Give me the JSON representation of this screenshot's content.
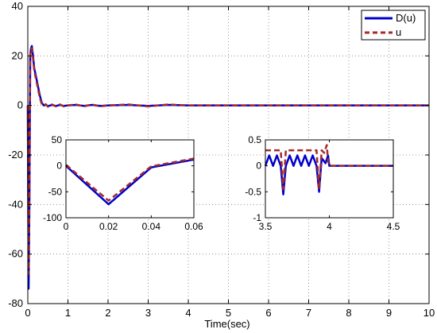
{
  "chart_data": [
    {
      "type": "line",
      "xlabel": "Time(sec)",
      "ylabel": "",
      "xlim": [
        0,
        10
      ],
      "ylim": [
        -80,
        40
      ],
      "xticks": [
        "0",
        "1",
        "2",
        "3",
        "4",
        "5",
        "6",
        "7",
        "8",
        "9",
        "10"
      ],
      "yticks": [
        "40",
        "20",
        "0",
        "-20",
        "-40",
        "-60",
        "-80"
      ],
      "grid": true,
      "legend": {
        "placement": "top-right",
        "entries": [
          "D(u)",
          "u"
        ]
      },
      "series": [
        {
          "name": "D(u)",
          "color": "#0000cc",
          "style": "solid",
          "x": [
            0,
            0.02,
            0.04,
            0.06,
            0.08,
            0.1,
            0.13,
            0.16,
            0.2,
            0.25,
            0.3,
            0.35,
            0.4,
            0.45,
            0.5,
            0.6,
            0.7,
            0.8,
            0.9,
            1.0,
            1.2,
            1.4,
            1.6,
            1.8,
            2.0,
            2.5,
            3.0,
            3.5,
            4.0,
            5,
            6,
            7,
            8,
            9,
            10
          ],
          "y": [
            0,
            -74,
            -40,
            20,
            23,
            24,
            20,
            15,
            12,
            8,
            4,
            1,
            0,
            0.3,
            -0.3,
            0.2,
            -0.2,
            0.2,
            -0.2,
            0,
            0.2,
            -0.2,
            0.2,
            -0.2,
            0,
            0.2,
            -0.2,
            0.2,
            0,
            0,
            0,
            0,
            0,
            0,
            0
          ]
        },
        {
          "name": "u",
          "color": "#a52a2a",
          "style": "dashed",
          "x": [
            0,
            0.02,
            0.04,
            0.06,
            0.08,
            0.1,
            0.13,
            0.16,
            0.2,
            0.25,
            0.3,
            0.35,
            0.4,
            0.45,
            0.5,
            0.6,
            0.7,
            0.8,
            0.9,
            1.0,
            1.2,
            1.4,
            1.6,
            1.8,
            2.0,
            2.5,
            3.0,
            3.5,
            4.0,
            5,
            6,
            7,
            8,
            9,
            10
          ],
          "y": [
            0,
            -68,
            -35,
            20,
            23,
            23,
            19,
            14,
            11,
            7,
            3,
            0.5,
            0,
            0.5,
            -0.5,
            0.4,
            -0.4,
            0.4,
            -0.4,
            0,
            0.4,
            -0.4,
            0.4,
            -0.4,
            0,
            0.4,
            -0.4,
            0.4,
            0,
            0,
            0,
            0,
            0,
            0,
            0
          ]
        }
      ]
    },
    {
      "type": "line",
      "xlim": [
        0,
        0.06
      ],
      "ylim": [
        -100,
        50
      ],
      "xticks": [
        "0",
        "0.02",
        "0.04",
        "0.06"
      ],
      "yticks": [
        "50",
        "0",
        "-50",
        "-100"
      ],
      "grid": false,
      "series": [
        {
          "name": "D(u)",
          "color": "#0000cc",
          "style": "solid",
          "x": [
            0,
            0.02,
            0.04,
            0.06
          ],
          "y": [
            0,
            -74,
            -3,
            12
          ]
        },
        {
          "name": "u",
          "color": "#a52a2a",
          "style": "dashed",
          "x": [
            0,
            0.02,
            0.04,
            0.06
          ],
          "y": [
            2,
            -67,
            -1,
            14
          ]
        }
      ]
    },
    {
      "type": "line",
      "xlim": [
        3.5,
        4.5
      ],
      "ylim": [
        -1,
        0.5
      ],
      "xticks": [
        "3.5",
        "4",
        "4.5"
      ],
      "yticks": [
        "0.5",
        "0",
        "-0.5",
        "-1"
      ],
      "grid": false,
      "series": [
        {
          "name": "D(u)",
          "color": "#0000cc",
          "style": "solid",
          "x": [
            3.5,
            3.53,
            3.56,
            3.59,
            3.62,
            3.64,
            3.66,
            3.69,
            3.72,
            3.75,
            3.78,
            3.81,
            3.84,
            3.87,
            3.9,
            3.92,
            3.94,
            3.97,
            3.99,
            4.0,
            4.2,
            4.5
          ],
          "y": [
            0,
            0.2,
            0,
            0.2,
            0,
            -0.55,
            0,
            0.2,
            0,
            0.2,
            0,
            0.2,
            0,
            0.2,
            0,
            -0.5,
            0.15,
            0.05,
            0.2,
            0,
            0,
            0
          ]
        },
        {
          "name": "u",
          "color": "#a52a2a",
          "style": "dashed",
          "x": [
            3.5,
            3.6,
            3.62,
            3.64,
            3.66,
            3.7,
            3.8,
            3.88,
            3.9,
            3.92,
            3.94,
            3.96,
            3.98,
            3.99,
            4.0,
            4.2,
            4.5
          ],
          "y": [
            0.3,
            0.3,
            0.3,
            -0.45,
            0.3,
            0.3,
            0.3,
            0.3,
            0.3,
            -0.45,
            0.3,
            0.25,
            0.4,
            0.1,
            0,
            0,
            0
          ]
        }
      ]
    }
  ]
}
